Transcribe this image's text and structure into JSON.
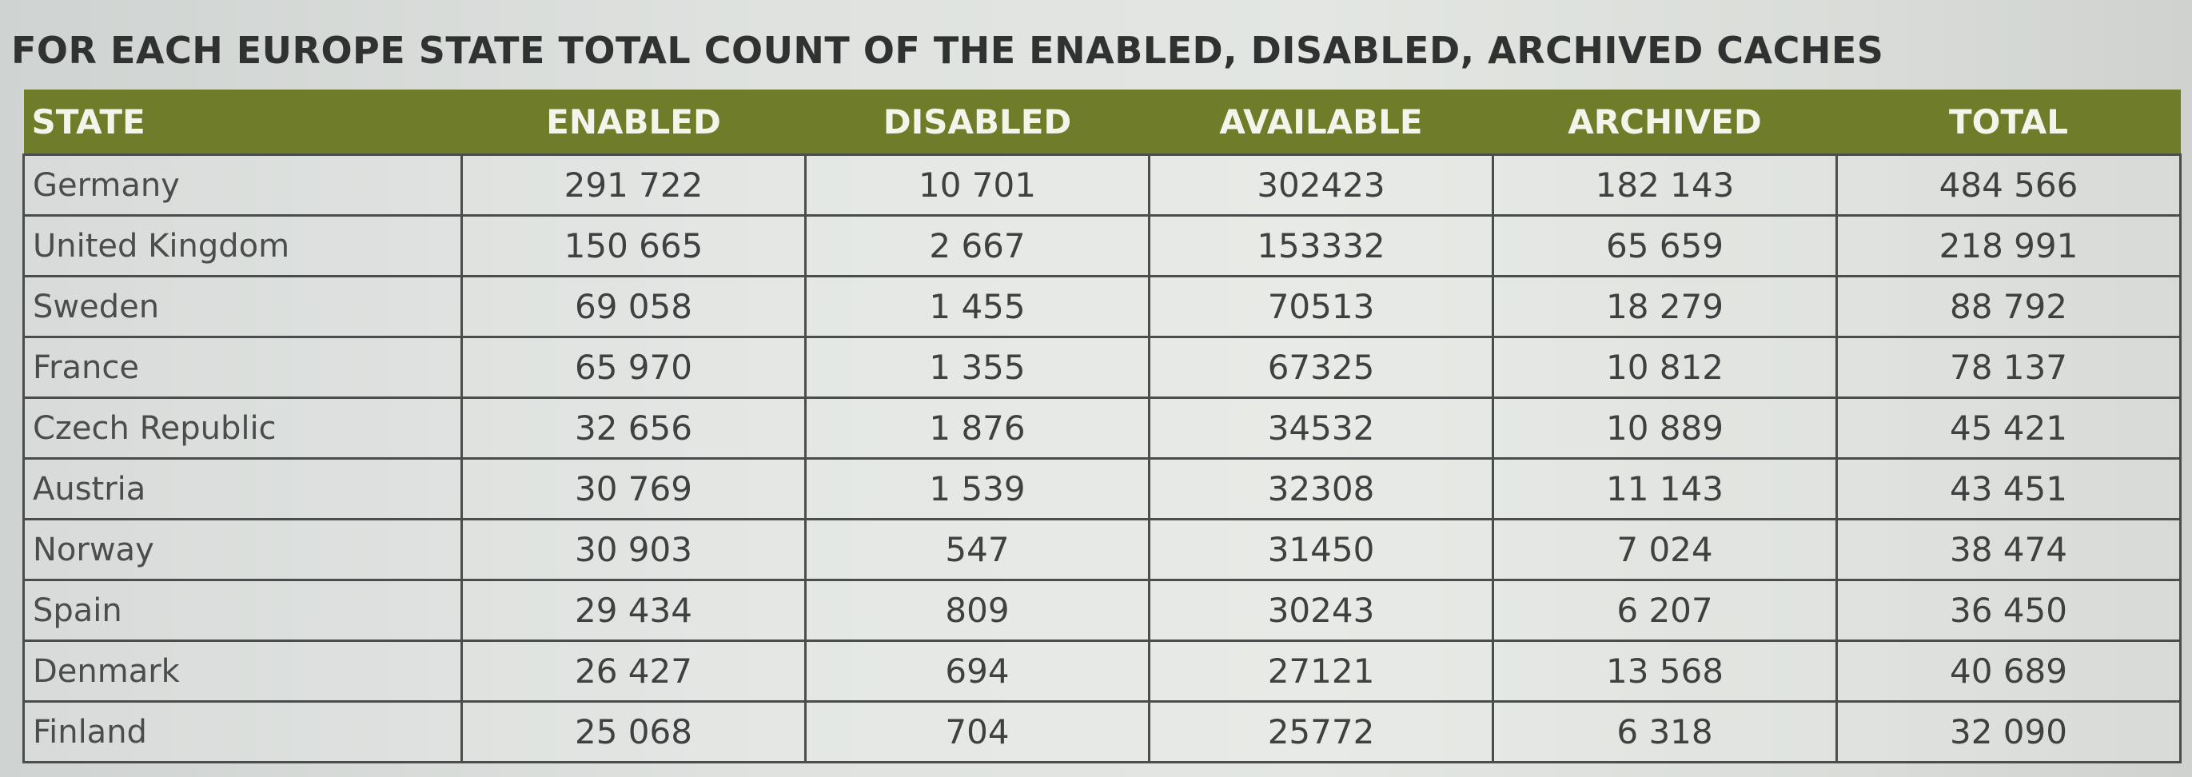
{
  "title": "FOR EACH EUROPE STATE TOTAL COUNT OF THE ENABLED, DISABLED, ARCHIVED CACHES",
  "columns": [
    "STATE",
    "ENABLED",
    "DISABLED",
    "AVAILABLE",
    "ARCHIVED",
    "TOTAL"
  ],
  "rows": [
    {
      "state": "Germany",
      "enabled": "291 722",
      "disabled": "10 701",
      "available": "302423",
      "archived": "182 143",
      "total": "484 566"
    },
    {
      "state": "United Kingdom",
      "enabled": "150 665",
      "disabled": "2 667",
      "available": "153332",
      "archived": "65 659",
      "total": "218 991"
    },
    {
      "state": "Sweden",
      "enabled": "69 058",
      "disabled": "1 455",
      "available": "70513",
      "archived": "18 279",
      "total": "88 792"
    },
    {
      "state": "France",
      "enabled": "65 970",
      "disabled": "1 355",
      "available": "67325",
      "archived": "10 812",
      "total": "78 137"
    },
    {
      "state": "Czech Republic",
      "enabled": "32 656",
      "disabled": "1 876",
      "available": "34532",
      "archived": "10 889",
      "total": "45 421"
    },
    {
      "state": "Austria",
      "enabled": "30 769",
      "disabled": "1 539",
      "available": "32308",
      "archived": "11 143",
      "total": "43 451"
    },
    {
      "state": "Norway",
      "enabled": "30 903",
      "disabled": "547",
      "available": "31450",
      "archived": "7 024",
      "total": "38 474"
    },
    {
      "state": "Spain",
      "enabled": "29 434",
      "disabled": "809",
      "available": "30243",
      "archived": "6 207",
      "total": "36 450"
    },
    {
      "state": "Denmark",
      "enabled": "26 427",
      "disabled": "694",
      "available": "27121",
      "archived": "13 568",
      "total": "40 689"
    },
    {
      "state": "Finland",
      "enabled": "25 068",
      "disabled": "704",
      "available": "25772",
      "archived": "6 318",
      "total": "32 090"
    }
  ],
  "colors": {
    "header_bg": "#6f7d2a",
    "header_text": "#f4f4ea",
    "grid_line": "#4a4d4b",
    "body_text": "#3e413f"
  }
}
